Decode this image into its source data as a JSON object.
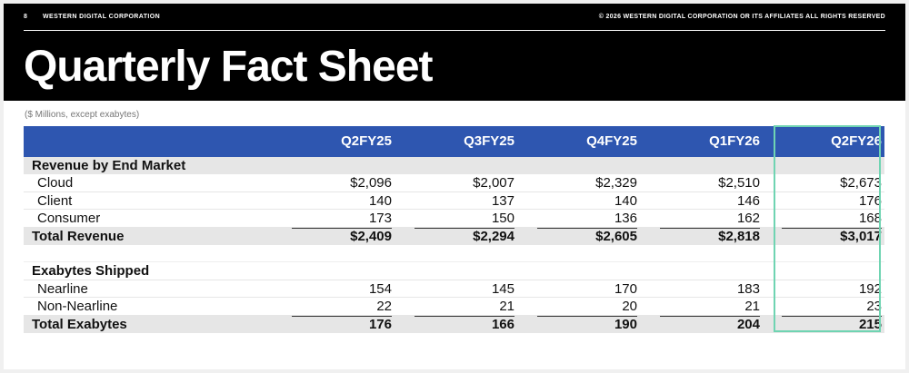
{
  "header": {
    "page_number": "8",
    "company": "WESTERN DIGITAL CORPORATION",
    "copyright": "© 2026 WESTERN DIGITAL CORPORATION OR ITS AFFILIATES  ALL RIGHTS RESERVED",
    "title": "Quarterly Fact Sheet"
  },
  "subtitle": "($ Millions, except exabytes)",
  "table": {
    "columns": [
      "Q2FY25",
      "Q3FY25",
      "Q4FY25",
      "Q1FY26",
      "Q2FY26"
    ],
    "revenue_section": "Revenue by End Market",
    "revenue_rows": [
      {
        "label": "Cloud",
        "values": [
          "$2,096",
          "$2,007",
          "$2,329",
          "$2,510",
          "$2,673"
        ]
      },
      {
        "label": "Client",
        "values": [
          "140",
          "137",
          "140",
          "146",
          "176"
        ]
      },
      {
        "label": "Consumer",
        "values": [
          "173",
          "150",
          "136",
          "162",
          "168"
        ]
      }
    ],
    "total_revenue": {
      "label": "Total Revenue",
      "values": [
        "$2,409",
        "$2,294",
        "$2,605",
        "$2,818",
        "$3,017"
      ]
    },
    "exabytes_section": "Exabytes Shipped",
    "exabytes_rows": [
      {
        "label": "Nearline",
        "values": [
          "154",
          "145",
          "170",
          "183",
          "192"
        ]
      },
      {
        "label": "Non-Nearline",
        "values": [
          "22",
          "21",
          "20",
          "21",
          "23"
        ]
      }
    ],
    "total_exabytes": {
      "label": "Total Exabytes",
      "values": [
        "176",
        "166",
        "190",
        "204",
        "215"
      ]
    }
  },
  "colors": {
    "header_bar": "#000000",
    "table_header": "#2e56b0",
    "section_fill": "#e6e6e6",
    "highlight_border": "#6fd4b2"
  }
}
